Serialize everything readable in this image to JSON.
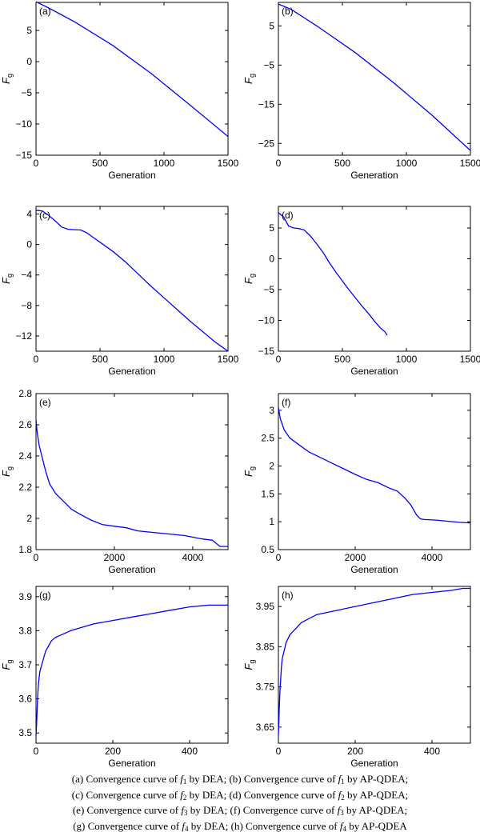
{
  "chart_data": [
    {
      "type": "line",
      "panel_label": "(a)",
      "xlabel": "Generation",
      "ylabel": "F",
      "ylabel_sub": "g",
      "xlim": [
        0,
        1500
      ],
      "ylim": [
        -15,
        9.5
      ],
      "xticks": [
        0,
        500,
        1000,
        1500
      ],
      "yticks": [
        -15,
        -10,
        -5,
        0,
        5
      ],
      "series": [
        {
          "color": "#0000ff",
          "x": [
            0,
            100,
            300,
            600,
            900,
            1200,
            1500
          ],
          "y": [
            9.6,
            8.6,
            6.4,
            2.6,
            -1.9,
            -6.9,
            -12.0
          ]
        }
      ]
    },
    {
      "type": "line",
      "panel_label": "(b)",
      "xlabel": "Generation",
      "ylabel": "F",
      "ylabel_sub": "g",
      "xlim": [
        0,
        1500
      ],
      "ylim": [
        -28,
        11
      ],
      "xticks": [
        0,
        500,
        1000,
        1500
      ],
      "yticks": [
        -25,
        -15,
        -5,
        5
      ],
      "series": [
        {
          "color": "#0000ff",
          "x": [
            0,
            100,
            300,
            600,
            900,
            1200,
            1500
          ],
          "y": [
            10.6,
            9.2,
            5.0,
            -1.8,
            -9.5,
            -17.8,
            -26.8
          ]
        }
      ]
    },
    {
      "type": "line",
      "panel_label": "(c)",
      "xlabel": "Generation",
      "ylabel": "F",
      "ylabel_sub": "g",
      "xlim": [
        0,
        1500
      ],
      "ylim": [
        -14,
        5
      ],
      "xticks": [
        0,
        500,
        1000,
        1500
      ],
      "yticks": [
        -12,
        -8,
        -4,
        0,
        4
      ],
      "series": [
        {
          "color": "#0000ff",
          "x": [
            0,
            50,
            100,
            150,
            200,
            250,
            300,
            350,
            400,
            450,
            500,
            600,
            700,
            800,
            900,
            1000,
            1100,
            1200,
            1300,
            1400,
            1450,
            1500
          ],
          "y": [
            4.5,
            4.4,
            3.8,
            3.1,
            2.3,
            2.0,
            1.95,
            1.9,
            1.5,
            0.9,
            0.3,
            -0.9,
            -2.3,
            -3.9,
            -5.5,
            -7.0,
            -8.5,
            -10.0,
            -11.4,
            -12.8,
            -13.4,
            -14.0
          ]
        }
      ]
    },
    {
      "type": "line",
      "panel_label": "(d)",
      "xlabel": "Generation",
      "ylabel": "F",
      "ylabel_sub": "g",
      "xlim": [
        0,
        1500
      ],
      "ylim": [
        -15,
        8.5
      ],
      "xticks": [
        0,
        500,
        1000,
        1500
      ],
      "yticks": [
        -15,
        -10,
        -5,
        0,
        5
      ],
      "series": [
        {
          "color": "#0000ff",
          "x": [
            0,
            40,
            80,
            120,
            160,
            200,
            250,
            300,
            350,
            400,
            450,
            500,
            550,
            600,
            650,
            700,
            750,
            800,
            830,
            850
          ],
          "y": [
            7.5,
            6.8,
            5.3,
            5.0,
            4.9,
            4.7,
            3.7,
            2.4,
            1.0,
            -0.7,
            -2.2,
            -3.6,
            -5.0,
            -6.3,
            -7.6,
            -8.8,
            -10.1,
            -11.3,
            -11.8,
            -12.4
          ]
        }
      ]
    },
    {
      "type": "line",
      "panel_label": "(e)",
      "xlabel": "Generation",
      "ylabel": "F",
      "ylabel_sub": "g",
      "xlim": [
        0,
        4900
      ],
      "ylim": [
        1.8,
        2.8
      ],
      "xticks": [
        0,
        2000,
        4000
      ],
      "yticks": [
        1.8,
        2.0,
        2.2,
        2.4,
        2.6,
        2.8
      ],
      "series": [
        {
          "color": "#0000ff",
          "x": [
            0,
            30,
            80,
            150,
            250,
            350,
            500,
            700,
            900,
            1100,
            1400,
            1700,
            2000,
            2300,
            2600,
            3000,
            3400,
            3800,
            4200,
            4500,
            4600,
            4700,
            4900
          ],
          "y": [
            2.63,
            2.55,
            2.47,
            2.4,
            2.3,
            2.22,
            2.16,
            2.11,
            2.06,
            2.03,
            1.99,
            1.96,
            1.95,
            1.94,
            1.92,
            1.91,
            1.9,
            1.89,
            1.87,
            1.86,
            1.84,
            1.82,
            1.82
          ]
        }
      ]
    },
    {
      "type": "line",
      "panel_label": "(f)",
      "xlabel": "Generation",
      "ylabel": "F",
      "ylabel_sub": "g",
      "xlim": [
        0,
        5000
      ],
      "ylim": [
        0.5,
        3.3
      ],
      "xticks": [
        0,
        2000,
        4000
      ],
      "yticks": [
        0.5,
        1.0,
        1.5,
        2.0,
        2.5,
        3.0
      ],
      "series": [
        {
          "color": "#0000ff",
          "x": [
            0,
            50,
            150,
            300,
            500,
            800,
            1100,
            1400,
            1700,
            2000,
            2300,
            2600,
            2900,
            3100,
            3300,
            3450,
            3600,
            3700,
            3800,
            4100,
            4400,
            4700,
            5000
          ],
          "y": [
            3.05,
            2.85,
            2.65,
            2.5,
            2.4,
            2.25,
            2.15,
            2.05,
            1.95,
            1.85,
            1.76,
            1.7,
            1.6,
            1.55,
            1.42,
            1.3,
            1.12,
            1.05,
            1.04,
            1.03,
            1.01,
            0.99,
            0.98
          ]
        }
      ]
    },
    {
      "type": "line",
      "panel_label": "(g)",
      "xlabel": "Generation",
      "ylabel": "F",
      "ylabel_sub": "g",
      "xlim": [
        0,
        500
      ],
      "ylim": [
        3.47,
        3.93
      ],
      "xticks": [
        0,
        200,
        400
      ],
      "yticks": [
        3.5,
        3.6,
        3.7,
        3.8,
        3.9
      ],
      "series": [
        {
          "color": "#0000ff",
          "x": [
            0,
            2,
            4,
            6,
            8,
            10,
            15,
            20,
            25,
            30,
            40,
            50,
            70,
            90,
            120,
            150,
            200,
            250,
            300,
            350,
            400,
            450,
            500
          ],
          "y": [
            3.49,
            3.54,
            3.6,
            3.64,
            3.66,
            3.68,
            3.7,
            3.72,
            3.74,
            3.75,
            3.77,
            3.78,
            3.79,
            3.8,
            3.81,
            3.82,
            3.83,
            3.84,
            3.85,
            3.86,
            3.87,
            3.875,
            3.875
          ]
        }
      ]
    },
    {
      "type": "line",
      "panel_label": "(h)",
      "xlabel": "Generation",
      "ylabel": "F",
      "ylabel_sub": "g",
      "xlim": [
        0,
        500
      ],
      "ylim": [
        3.61,
        4.0
      ],
      "xticks": [
        0,
        200,
        400
      ],
      "yticks": [
        3.65,
        3.75,
        3.85,
        3.95
      ],
      "series": [
        {
          "color": "#0000ff",
          "x": [
            0,
            2,
            4,
            6,
            8,
            10,
            15,
            20,
            30,
            40,
            50,
            60,
            80,
            100,
            150,
            200,
            250,
            300,
            350,
            400,
            450,
            480,
            500
          ],
          "y": [
            3.63,
            3.69,
            3.74,
            3.77,
            3.8,
            3.82,
            3.84,
            3.86,
            3.88,
            3.89,
            3.9,
            3.91,
            3.92,
            3.93,
            3.94,
            3.95,
            3.96,
            3.97,
            3.98,
            3.985,
            3.99,
            3.995,
            3.995
          ]
        }
      ]
    }
  ],
  "caption": [
    [
      "(a) Convergence curve of ",
      "f",
      "1",
      " by DEA; (b) Convergence curve of ",
      "f",
      "1",
      " by AP-QDEA;"
    ],
    [
      "(c) Convergence curve of ",
      "f",
      "2",
      " by DEA; (d) Convergence curve of ",
      "f",
      "2",
      " by AP-QDEA;"
    ],
    [
      "(e) Convergence curve of ",
      "f",
      "3",
      " by DEA; (f) Convergence curve of ",
      "f",
      "3",
      " by AP-QDEA;"
    ],
    [
      "(g) Convergence curve of ",
      "f",
      "4",
      " by DEA; (h) Convergence curve of ",
      "f",
      "4",
      " by AP-QDEA"
    ]
  ]
}
